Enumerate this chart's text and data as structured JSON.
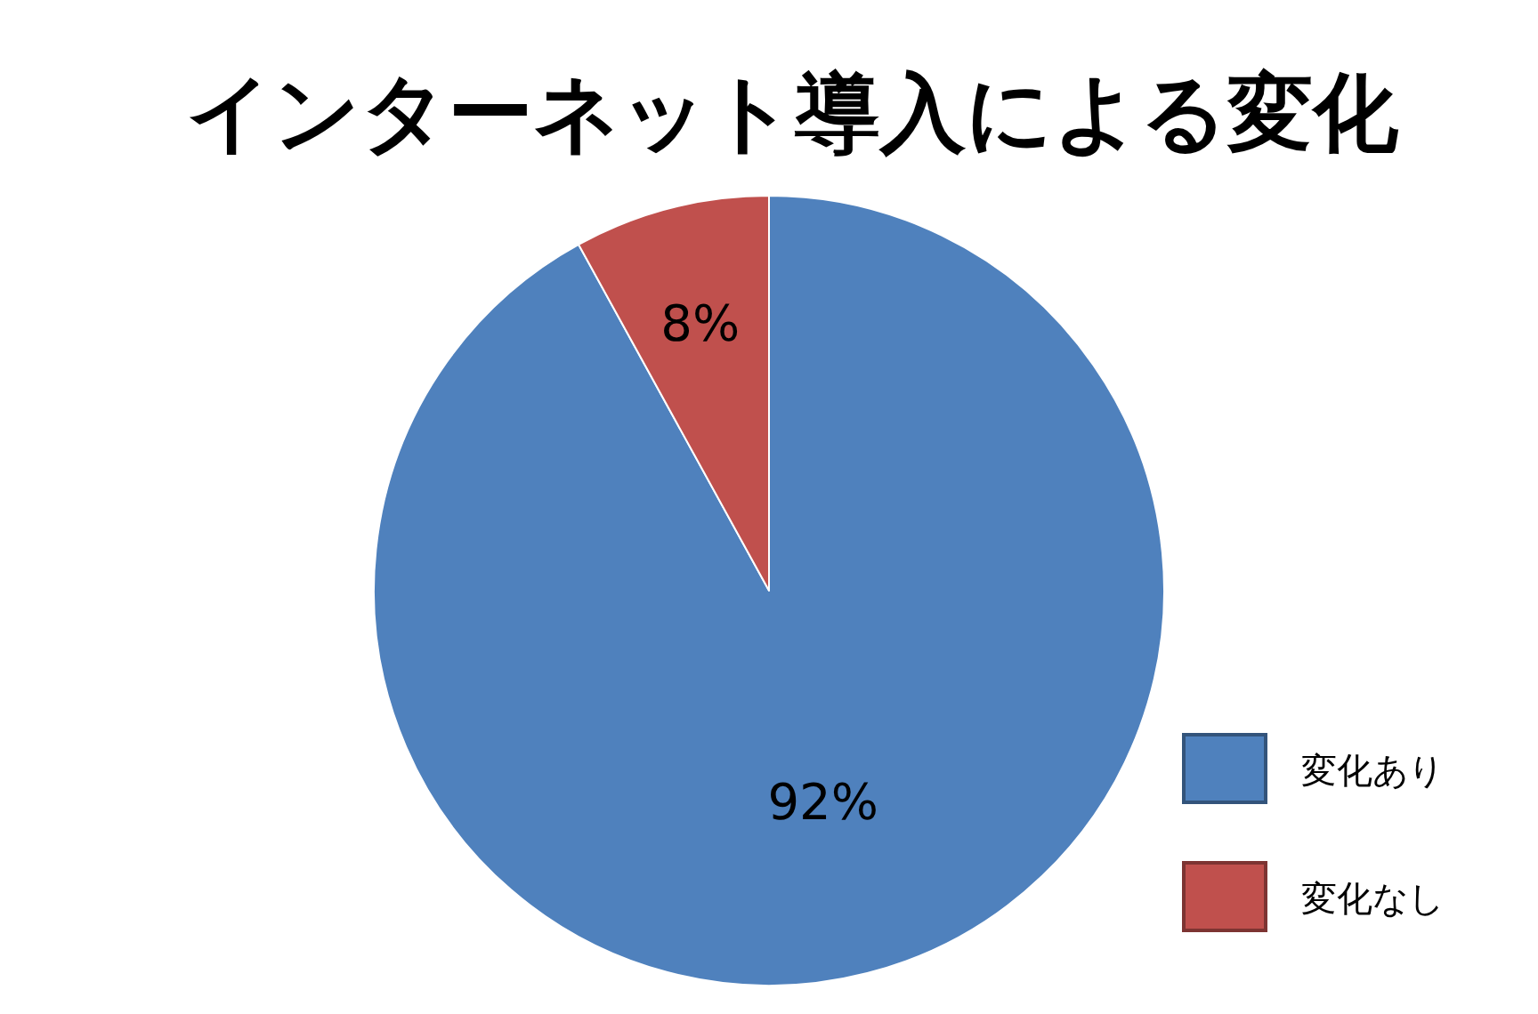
{
  "chart_data": {
    "type": "pie",
    "title": "インターネット導入による変化",
    "categories": [
      "変化あり",
      "変化なし"
    ],
    "values": [
      92,
      8
    ],
    "colors": [
      "#4f81bd",
      "#c0504d"
    ],
    "value_labels": [
      "92%",
      "8%"
    ],
    "legend": "right"
  }
}
